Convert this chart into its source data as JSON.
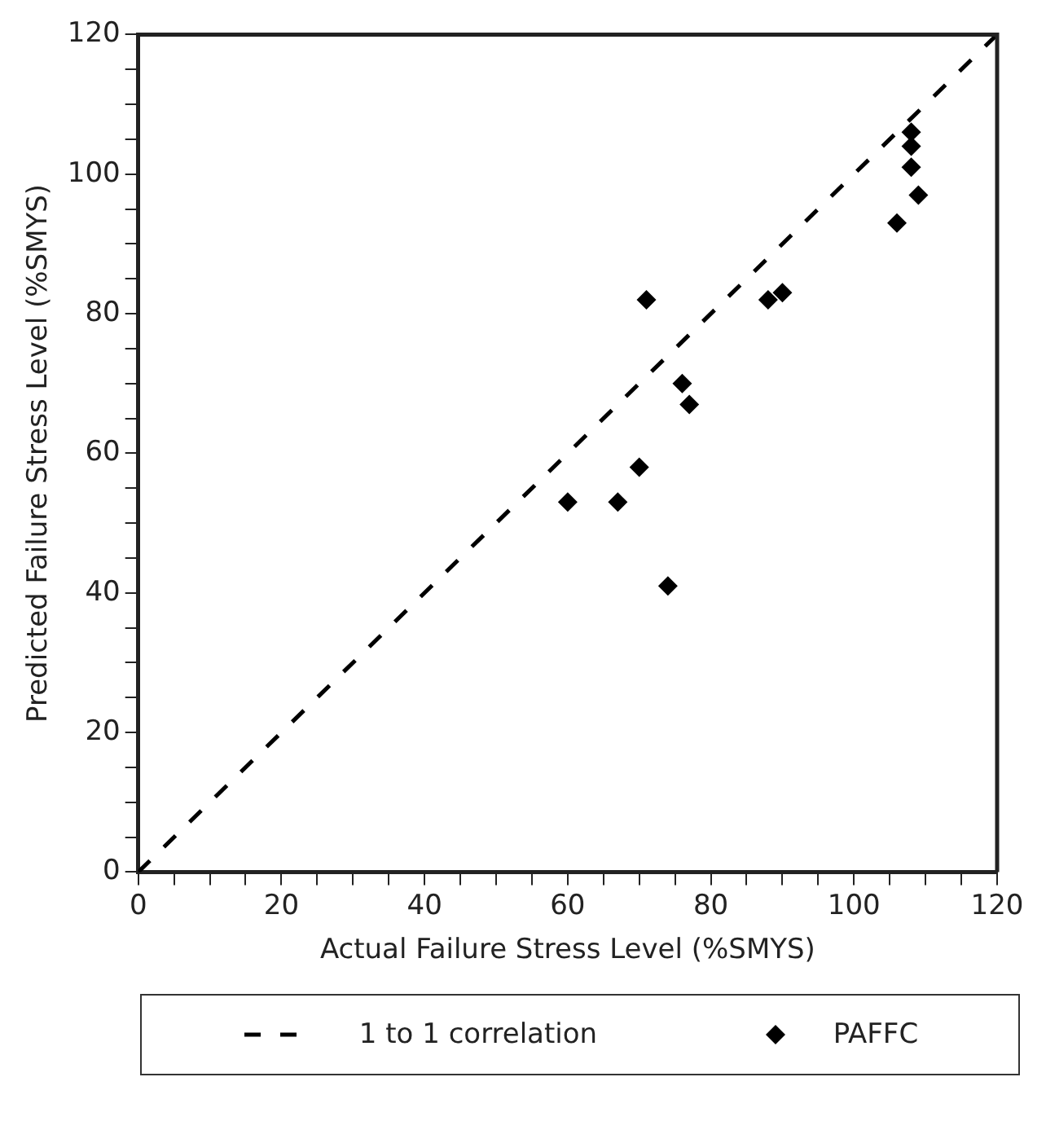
{
  "chart_data": {
    "type": "scatter",
    "xlabel": "Actual Failure Stress Level (%SMYS)",
    "ylabel": "Predicted Failure Stress Level (%SMYS)",
    "xlim": [
      0,
      120
    ],
    "ylim": [
      0,
      120
    ],
    "xticks": [
      0,
      {
        "value": 5,
        "label": null
      },
      {
        "value": 10,
        "label": null
      },
      {
        "value": 15,
        "label": null
      },
      20,
      {
        "value": 25,
        "label": null
      },
      {
        "value": 30,
        "label": null
      },
      {
        "value": 35,
        "label": null
      },
      40,
      {
        "value": 45,
        "label": null
      },
      {
        "value": 50,
        "label": null
      },
      {
        "value": 55,
        "label": null
      },
      60,
      {
        "value": 65,
        "label": null
      },
      {
        "value": 70,
        "label": null
      },
      {
        "value": 75,
        "label": null
      },
      80,
      {
        "value": 85,
        "label": null
      },
      {
        "value": 90,
        "label": null
      },
      {
        "value": 95,
        "label": null
      },
      100,
      {
        "value": 105,
        "label": null
      },
      {
        "value": 110,
        "label": null
      },
      {
        "value": 115,
        "label": null
      },
      120
    ],
    "yticks": [
      0,
      {
        "value": 5,
        "label": null
      },
      {
        "value": 10,
        "label": null
      },
      {
        "value": 15,
        "label": null
      },
      20,
      {
        "value": 25,
        "label": null
      },
      {
        "value": 30,
        "label": null
      },
      {
        "value": 35,
        "label": null
      },
      40,
      {
        "value": 45,
        "label": null
      },
      {
        "value": 50,
        "label": null
      },
      {
        "value": 55,
        "label": null
      },
      60,
      {
        "value": 65,
        "label": null
      },
      {
        "value": 70,
        "label": null
      },
      {
        "value": 75,
        "label": null
      },
      80,
      {
        "value": 85,
        "label": null
      },
      {
        "value": 90,
        "label": null
      },
      {
        "value": 95,
        "label": null
      },
      100,
      {
        "value": 105,
        "label": null
      },
      {
        "value": 110,
        "label": null
      },
      {
        "value": 115,
        "label": null
      },
      120
    ],
    "legend": "bottom",
    "grid": false,
    "series": [
      {
        "name": "1 to 1 correlation",
        "type": "line",
        "color": "#000000",
        "line_style": "dashed",
        "marker": "none",
        "x": [
          0,
          120
        ],
        "values": [
          0,
          120
        ]
      },
      {
        "name": "PAFFC",
        "type": "scatter",
        "color": "#000000",
        "marker": "diamond",
        "x": [
          60,
          67,
          70,
          71,
          74,
          76,
          77,
          88,
          90,
          106,
          108,
          108,
          108,
          109
        ],
        "values": [
          53,
          53,
          58,
          82,
          41,
          70,
          67,
          82,
          83,
          93,
          106,
          104,
          101,
          97
        ]
      }
    ]
  }
}
